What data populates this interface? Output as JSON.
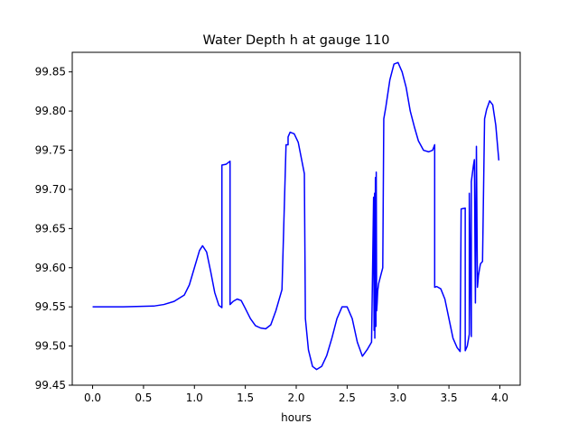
{
  "chart_data": {
    "type": "line",
    "title": "Water Depth h at gauge 110",
    "xlabel": "hours",
    "ylabel": "",
    "xlim": [
      -0.2,
      4.2
    ],
    "ylim": [
      99.45,
      99.875
    ],
    "xticks": [
      0,
      0.5,
      1,
      1.5,
      2,
      2.5,
      3,
      3.5,
      4
    ],
    "xtick_labels": [
      "0.0",
      "0.5",
      "1.0",
      "1.5",
      "2.0",
      "2.5",
      "3.0",
      "3.5",
      "4.0"
    ],
    "yticks": [
      99.45,
      99.5,
      99.55,
      99.6,
      99.65,
      99.7,
      99.75,
      99.8,
      99.85
    ],
    "ytick_labels": [
      "99.45",
      "99.50",
      "99.55",
      "99.60",
      "99.65",
      "99.70",
      "99.75",
      "99.80",
      "99.85"
    ],
    "grid": false,
    "legend": "none",
    "series": [
      {
        "name": "",
        "color": "#0000ff",
        "x": [
          0,
          0.3,
          0.6,
          0.7,
          0.8,
          0.9,
          0.95,
          1.0,
          1.05,
          1.08,
          1.12,
          1.16,
          1.2,
          1.24,
          1.27,
          1.27,
          1.31,
          1.35,
          1.35,
          1.38,
          1.42,
          1.46,
          1.5,
          1.55,
          1.6,
          1.65,
          1.7,
          1.75,
          1.8,
          1.86,
          1.9,
          1.92,
          1.92,
          1.94,
          1.98,
          2.02,
          2.05,
          2.08,
          2.09,
          2.12,
          2.16,
          2.2,
          2.25,
          2.3,
          2.35,
          2.4,
          2.45,
          2.5,
          2.55,
          2.6,
          2.65,
          2.7,
          2.74,
          2.76,
          2.765,
          2.77,
          2.772,
          2.778,
          2.783,
          2.786,
          2.79,
          2.795,
          2.8,
          2.8,
          2.81,
          2.83,
          2.85,
          2.86,
          2.86,
          2.88,
          2.92,
          2.96,
          3.0,
          3.04,
          3.08,
          3.12,
          3.16,
          3.2,
          3.25,
          3.3,
          3.34,
          3.36,
          3.36,
          3.38,
          3.42,
          3.46,
          3.5,
          3.54,
          3.58,
          3.61,
          3.62,
          3.66,
          3.66,
          3.68,
          3.7,
          3.7,
          3.72,
          3.72,
          3.74,
          3.75,
          3.76,
          3.77,
          3.78,
          3.785,
          3.79,
          3.8,
          3.81,
          3.83,
          3.85,
          3.85,
          3.87,
          3.9,
          3.93,
          3.96,
          3.99
        ],
        "y": [
          99.55,
          99.55,
          99.551,
          99.553,
          99.557,
          99.565,
          99.578,
          99.6,
          99.622,
          99.628,
          99.62,
          99.595,
          99.568,
          99.552,
          99.549,
          99.731,
          99.732,
          99.736,
          99.553,
          99.557,
          99.56,
          99.558,
          99.548,
          99.535,
          99.526,
          99.523,
          99.522,
          99.527,
          99.545,
          99.572,
          99.757,
          99.757,
          99.767,
          99.773,
          99.771,
          99.76,
          99.74,
          99.72,
          99.535,
          99.495,
          99.474,
          99.47,
          99.474,
          99.488,
          99.51,
          99.535,
          99.55,
          99.55,
          99.535,
          99.505,
          99.487,
          99.496,
          99.505,
          99.69,
          99.52,
          99.695,
          99.51,
          99.715,
          99.525,
          99.722,
          99.545,
          99.555,
          99.57,
          99.57,
          99.58,
          99.59,
          99.6,
          99.79,
          99.79,
          99.805,
          99.84,
          99.86,
          99.862,
          99.85,
          99.83,
          99.8,
          99.78,
          99.762,
          99.75,
          99.748,
          99.75,
          99.757,
          99.575,
          99.576,
          99.573,
          99.56,
          99.535,
          99.51,
          99.498,
          99.493,
          99.675,
          99.676,
          99.494,
          99.5,
          99.515,
          99.695,
          99.512,
          99.71,
          99.73,
          99.738,
          99.555,
          99.755,
          99.575,
          99.582,
          99.59,
          99.598,
          99.605,
          99.608,
          99.79,
          99.79,
          99.802,
          99.813,
          99.808,
          99.782,
          99.737
        ]
      }
    ]
  }
}
